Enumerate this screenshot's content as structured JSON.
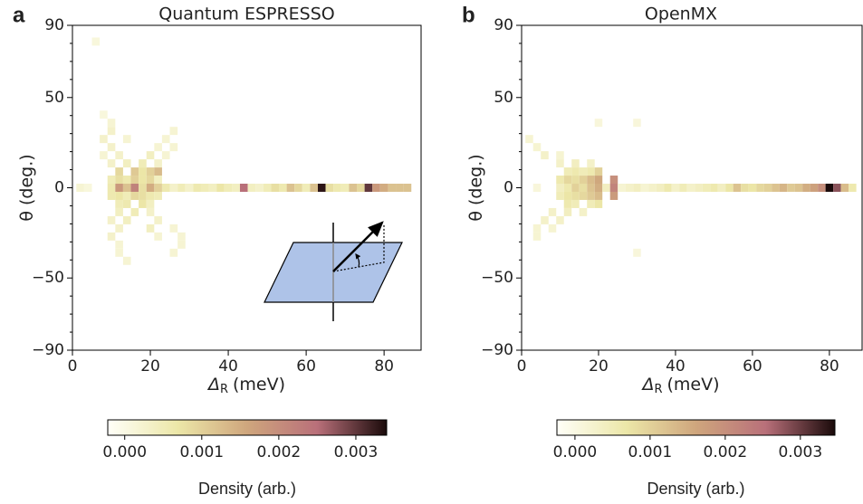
{
  "chart_data": [
    {
      "type": "heatmap",
      "panel": "a",
      "title": "Quantum ESPRESSO",
      "xlabel_symbol": "Δ",
      "xlabel_sub": "R",
      "xlabel_unit": "(meV)",
      "ylabel": "θ (deg.)",
      "inset_label": "θ",
      "xlim": [
        0,
        89.5
      ],
      "xticks": [
        0,
        20,
        40,
        60,
        80
      ],
      "ylim": [
        -90,
        90
      ],
      "yticks": [
        {
          "value": -90,
          "label": "−90"
        },
        {
          "value": -50,
          "label": "−50"
        },
        0,
        50,
        90
      ],
      "yminorticks": [
        -80,
        -70,
        -60,
        -40,
        -30,
        -20,
        -10,
        10,
        20,
        30,
        40,
        60,
        70,
        80
      ],
      "bin_width": [
        2,
        4.5
      ],
      "cmap": [
        "#fffff8",
        "#ece7a8",
        "#cfa67d",
        "#b9707a",
        "#1a0a0a"
      ],
      "colorbar": {
        "label": "Density (arb.)",
        "lim": [
          -0.00022,
          0.0034
        ],
        "ticks": [
          {
            "value": 0,
            "label": "0.000"
          },
          {
            "value": 0.001,
            "label": "0.001"
          },
          {
            "value": 0.002,
            "label": "0.002"
          },
          {
            "value": 0.003,
            "label": "0.003"
          }
        ]
      },
      "cells": [
        [
          2,
          0,
          0.0002
        ],
        [
          4,
          0,
          0.0001
        ],
        [
          10,
          0,
          0.0006
        ],
        [
          12,
          0,
          0.0018
        ],
        [
          14,
          0,
          0.0012
        ],
        [
          16,
          0,
          0.0022
        ],
        [
          18,
          0,
          0.0008
        ],
        [
          20,
          0,
          0.0015
        ],
        [
          22,
          0,
          0.001
        ],
        [
          24,
          0,
          0.0006
        ],
        [
          26,
          0,
          0.0003
        ],
        [
          28,
          0,
          0.0005
        ],
        [
          30,
          0,
          0.0003
        ],
        [
          32,
          0,
          0.0006
        ],
        [
          34,
          0,
          0.0005
        ],
        [
          36,
          0,
          0.0004
        ],
        [
          38,
          0,
          0.0007
        ],
        [
          40,
          0,
          0.0005
        ],
        [
          42,
          0,
          0.0004
        ],
        [
          44,
          0,
          0.0025
        ],
        [
          46,
          0,
          0.0004
        ],
        [
          48,
          0,
          0.0003
        ],
        [
          50,
          0,
          0.0005
        ],
        [
          52,
          0,
          0.0008
        ],
        [
          54,
          0,
          0.0006
        ],
        [
          56,
          0,
          0.0012
        ],
        [
          58,
          0,
          0.0009
        ],
        [
          60,
          0,
          0.0005
        ],
        [
          62,
          0,
          0.0012
        ],
        [
          64,
          0,
          0.0033
        ],
        [
          66,
          0,
          0.0008
        ],
        [
          68,
          0,
          0.0006
        ],
        [
          70,
          0,
          0.0005
        ],
        [
          72,
          0,
          0.0012
        ],
        [
          74,
          0,
          0.0009
        ],
        [
          76,
          0,
          0.003
        ],
        [
          78,
          0,
          0.0018
        ],
        [
          80,
          0,
          0.0015
        ],
        [
          82,
          0,
          0.0012
        ],
        [
          84,
          0,
          0.0012
        ],
        [
          86,
          0,
          0.0012
        ],
        [
          10,
          4.5,
          0.0005
        ],
        [
          12,
          4.5,
          0.0008
        ],
        [
          14,
          4.5,
          0.0006
        ],
        [
          16,
          4.5,
          0.001
        ],
        [
          18,
          4.5,
          0.0007
        ],
        [
          20,
          4.5,
          0.0009
        ],
        [
          22,
          4.5,
          0.0004
        ],
        [
          10,
          -4.5,
          0.0006
        ],
        [
          12,
          -4.5,
          0.0007
        ],
        [
          14,
          -4.5,
          0.0005
        ],
        [
          16,
          -4.5,
          0.0009
        ],
        [
          18,
          -4.5,
          0.0008
        ],
        [
          20,
          -4.5,
          0.0006
        ],
        [
          22,
          -4.5,
          0.0005
        ],
        [
          12,
          9,
          0.0009
        ],
        [
          16,
          9,
          0.0011
        ],
        [
          18,
          9,
          0.0007
        ],
        [
          20,
          9,
          0.001
        ],
        [
          22,
          9,
          0.0013
        ],
        [
          12,
          -9,
          0.0005
        ],
        [
          14,
          -9,
          0.0006
        ],
        [
          18,
          -9,
          0.0007
        ],
        [
          20,
          -9,
          0.0004
        ],
        [
          10,
          13.5,
          0.0003
        ],
        [
          14,
          13.5,
          0.0004
        ],
        [
          18,
          13.5,
          0.0005
        ],
        [
          22,
          13.5,
          0.0003
        ],
        [
          12,
          -13.5,
          0.0004
        ],
        [
          16,
          -13.5,
          0.0005
        ],
        [
          20,
          -13.5,
          0.0003
        ],
        [
          8,
          18,
          0.0002
        ],
        [
          12,
          18,
          0.0003
        ],
        [
          20,
          18,
          0.0004
        ],
        [
          24,
          18,
          0.0002
        ],
        [
          10,
          -18,
          0.0003
        ],
        [
          14,
          -18,
          0.0004
        ],
        [
          22,
          -18,
          0.0003
        ],
        [
          10,
          22.5,
          0.0003
        ],
        [
          22,
          22.5,
          0.0002
        ],
        [
          26,
          22.5,
          0.0002
        ],
        [
          12,
          -22.5,
          0.0003
        ],
        [
          20,
          -22.5,
          0.0004
        ],
        [
          26,
          -22.5,
          0.0002
        ],
        [
          8,
          27,
          0.0003
        ],
        [
          14,
          27,
          0.0002
        ],
        [
          24,
          27,
          0.0002
        ],
        [
          10,
          -27,
          0.0003
        ],
        [
          22,
          -27,
          0.0002
        ],
        [
          28,
          -27,
          0.0002
        ],
        [
          10,
          31.5,
          0.0003
        ],
        [
          26,
          31.5,
          0.0002
        ],
        [
          12,
          -31.5,
          0.0002
        ],
        [
          28,
          -31.5,
          0.0002
        ],
        [
          10,
          36,
          0.0002
        ],
        [
          8,
          40.5,
          0.0001
        ],
        [
          12,
          -36,
          0.0002
        ],
        [
          26,
          -36,
          0.0002
        ],
        [
          14,
          -40.5,
          0.0002
        ],
        [
          6,
          81,
          0.0001
        ]
      ]
    },
    {
      "type": "heatmap",
      "panel": "b",
      "title": "OpenMX",
      "xlabel_symbol": "Δ",
      "xlabel_sub": "R",
      "xlabel_unit": "(meV)",
      "ylabel": "θ (deg.)",
      "xlim": [
        0,
        88.5
      ],
      "xticks": [
        0,
        20,
        40,
        60,
        80
      ],
      "ylim": [
        -90,
        90
      ],
      "yticks": [
        {
          "value": -90,
          "label": "−90"
        },
        {
          "value": -50,
          "label": "−50"
        },
        0,
        50,
        90
      ],
      "yminorticks": [
        -80,
        -70,
        -60,
        -40,
        -30,
        -20,
        -10,
        10,
        20,
        30,
        40,
        60,
        70,
        80
      ],
      "bin_width": [
        2,
        4.5
      ],
      "cmap": [
        "#fffff8",
        "#ece7a8",
        "#cfa67d",
        "#b9707a",
        "#1a0a0a"
      ],
      "colorbar": {
        "label": "Density (arb.)",
        "lim": [
          -0.00024,
          0.00346
        ],
        "ticks": [
          {
            "value": 0,
            "label": "0.000"
          },
          {
            "value": 0.001,
            "label": "0.001"
          },
          {
            "value": 0.002,
            "label": "0.002"
          },
          {
            "value": 0.003,
            "label": "0.003"
          }
        ]
      },
      "cells": [
        [
          4,
          0,
          0.0001
        ],
        [
          10,
          0,
          0.0004
        ],
        [
          12,
          0,
          0.0006
        ],
        [
          14,
          0,
          0.001
        ],
        [
          16,
          0,
          0.0008
        ],
        [
          18,
          0,
          0.0012
        ],
        [
          20,
          0,
          0.0015
        ],
        [
          22,
          0,
          0.0004
        ],
        [
          24,
          0,
          0.0022
        ],
        [
          26,
          0,
          0.0002
        ],
        [
          28,
          0,
          0.0003
        ],
        [
          30,
          0,
          0.0004
        ],
        [
          32,
          0,
          0.0002
        ],
        [
          34,
          0,
          0.0003
        ],
        [
          36,
          0,
          0.0004
        ],
        [
          38,
          0,
          0.0006
        ],
        [
          40,
          0,
          0.0003
        ],
        [
          42,
          0,
          0.0005
        ],
        [
          44,
          0,
          0.0003
        ],
        [
          46,
          0,
          0.0004
        ],
        [
          48,
          0,
          0.0005
        ],
        [
          50,
          0,
          0.0006
        ],
        [
          52,
          0,
          0.0004
        ],
        [
          54,
          0,
          0.0007
        ],
        [
          56,
          0,
          0.0012
        ],
        [
          58,
          0,
          0.0008
        ],
        [
          60,
          0,
          0.0007
        ],
        [
          62,
          0,
          0.0009
        ],
        [
          64,
          0,
          0.001
        ],
        [
          66,
          0,
          0.0012
        ],
        [
          68,
          0,
          0.0014
        ],
        [
          70,
          0,
          0.0011
        ],
        [
          72,
          0,
          0.0012
        ],
        [
          74,
          0,
          0.0015
        ],
        [
          76,
          0,
          0.0017
        ],
        [
          78,
          0,
          0.002
        ],
        [
          80,
          0,
          0.0036
        ],
        [
          82,
          0,
          0.0028
        ],
        [
          84,
          0,
          0.0013
        ],
        [
          86,
          0,
          0.0006
        ],
        [
          10,
          4.5,
          0.0006
        ],
        [
          12,
          4.5,
          0.0009
        ],
        [
          14,
          4.5,
          0.0008
        ],
        [
          16,
          4.5,
          0.001
        ],
        [
          18,
          4.5,
          0.0013
        ],
        [
          20,
          4.5,
          0.0016
        ],
        [
          24,
          4.5,
          0.002
        ],
        [
          10,
          -4.5,
          0.0005
        ],
        [
          12,
          -4.5,
          0.0007
        ],
        [
          14,
          -4.5,
          0.0008
        ],
        [
          16,
          -4.5,
          0.0009
        ],
        [
          18,
          -4.5,
          0.0011
        ],
        [
          20,
          -4.5,
          0.0013
        ],
        [
          24,
          -4.5,
          0.0018
        ],
        [
          12,
          9,
          0.0005
        ],
        [
          14,
          9,
          0.0006
        ],
        [
          16,
          9,
          0.0005
        ],
        [
          18,
          9,
          0.0006
        ],
        [
          20,
          9,
          0.001
        ],
        [
          12,
          -9,
          0.0006
        ],
        [
          14,
          -9,
          0.0005
        ],
        [
          18,
          -9,
          0.0005
        ],
        [
          20,
          -9,
          0.0007
        ],
        [
          10,
          13.5,
          0.0003
        ],
        [
          14,
          13.5,
          0.0004
        ],
        [
          18,
          13.5,
          0.0003
        ],
        [
          8,
          -13.5,
          0.0003
        ],
        [
          12,
          -13.5,
          0.0004
        ],
        [
          16,
          -13.5,
          0.0003
        ],
        [
          6,
          18,
          0.0003
        ],
        [
          10,
          18,
          0.0002
        ],
        [
          6,
          -18,
          0.0003
        ],
        [
          10,
          -18,
          0.0003
        ],
        [
          4,
          22.5,
          0.0002
        ],
        [
          4,
          -22.5,
          0.0002
        ],
        [
          8,
          -22.5,
          0.0002
        ],
        [
          2,
          27,
          0.0002
        ],
        [
          4,
          -27,
          0.0002
        ],
        [
          20,
          36,
          0.0001
        ],
        [
          30,
          36,
          0.0001
        ],
        [
          30,
          -36,
          0.0001
        ]
      ]
    }
  ]
}
